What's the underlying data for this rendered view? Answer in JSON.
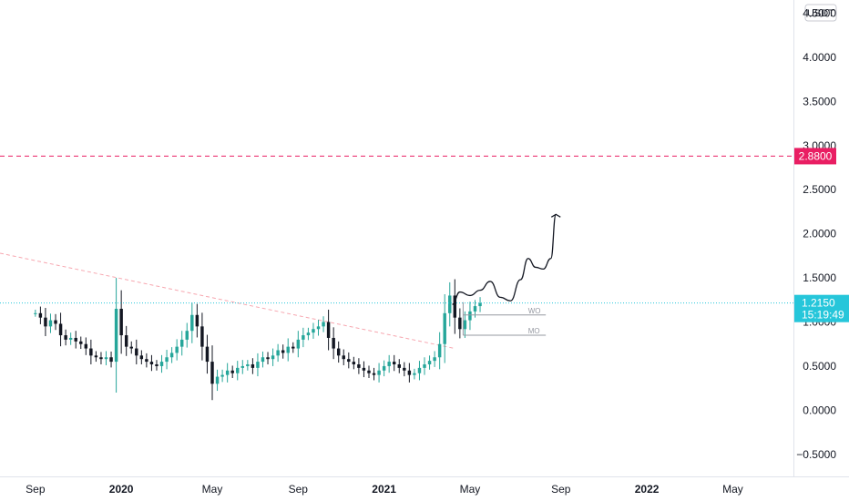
{
  "chart_data": {
    "type": "candlestick",
    "quote_currency": "USDT",
    "y_axis": {
      "ticks": [
        "4.5000",
        "4.0000",
        "3.5000",
        "3.0000",
        "2.5000",
        "2.0000",
        "1.5000",
        "1.0000",
        "0.5000",
        "0.0000",
        "−0.5000"
      ],
      "tick_values": [
        4.5,
        4.0,
        3.5,
        3.0,
        2.5,
        2.0,
        1.5,
        1.0,
        0.5,
        0.0,
        -0.5
      ],
      "range": [
        -0.75,
        4.65
      ]
    },
    "x_axis": {
      "labels": [
        {
          "text": "Sep",
          "bold": false,
          "week": 0
        },
        {
          "text": "2020",
          "bold": true,
          "week": 17
        },
        {
          "text": "May",
          "bold": false,
          "week": 35
        },
        {
          "text": "Sep",
          "bold": false,
          "week": 52
        },
        {
          "text": "2021",
          "bold": true,
          "week": 69
        },
        {
          "text": "May",
          "bold": false,
          "week": 86
        },
        {
          "text": "Sep",
          "bold": false,
          "week": 104
        },
        {
          "text": "2022",
          "bold": true,
          "week": 121
        },
        {
          "text": "May",
          "bold": false,
          "week": 138
        }
      ],
      "range_weeks": [
        -7,
        150
      ]
    },
    "colors": {
      "up": "#26a69a",
      "down": "#131722"
    },
    "closes": [
      1.1,
      1.05,
      0.95,
      1.02,
      0.98,
      0.85,
      0.8,
      0.82,
      0.78,
      0.75,
      0.7,
      0.62,
      0.6,
      0.58,
      0.6,
      0.55,
      1.15,
      0.85,
      0.72,
      0.7,
      0.62,
      0.58,
      0.55,
      0.52,
      0.5,
      0.55,
      0.6,
      0.65,
      0.72,
      0.8,
      0.9,
      1.08,
      0.95,
      0.72,
      0.55,
      0.3,
      0.38,
      0.4,
      0.45,
      0.42,
      0.48,
      0.5,
      0.52,
      0.48,
      0.55,
      0.6,
      0.58,
      0.62,
      0.68,
      0.65,
      0.72,
      0.7,
      0.8,
      0.85,
      0.88,
      0.92,
      0.95,
      1.0,
      0.82,
      0.7,
      0.62,
      0.58,
      0.55,
      0.52,
      0.48,
      0.45,
      0.42,
      0.4,
      0.45,
      0.5,
      0.55,
      0.52,
      0.48,
      0.45,
      0.4,
      0.42,
      0.48,
      0.52,
      0.56,
      0.6,
      0.75,
      1.1,
      1.3,
      1.05,
      0.92,
      1.02,
      1.12,
      1.18,
      1.215
    ],
    "weekly_open": 1.08,
    "monthly_open": 0.85,
    "resistance": 2.88,
    "last_price": 1.215,
    "countdown": "15:19:49",
    "trendline": [
      {
        "week": -7,
        "value": 1.78
      },
      {
        "week": 83,
        "value": 0.7
      }
    ],
    "projection": [
      {
        "week": 82.5,
        "value": 1.2
      },
      {
        "week": 84,
        "value": 1.34
      },
      {
        "week": 86,
        "value": 1.3
      },
      {
        "week": 88,
        "value": 1.36
      },
      {
        "week": 90,
        "value": 1.46
      },
      {
        "week": 92,
        "value": 1.28
      },
      {
        "week": 94,
        "value": 1.24
      },
      {
        "week": 96,
        "value": 1.48
      },
      {
        "week": 97.5,
        "value": 1.72
      },
      {
        "week": 99,
        "value": 1.62
      },
      {
        "week": 100.5,
        "value": 1.6
      },
      {
        "week": 102,
        "value": 1.72
      },
      {
        "week": 103,
        "value": 2.22
      }
    ],
    "annotations": {
      "weekly_open_label": "WO",
      "monthly_open_label": "MO"
    }
  }
}
